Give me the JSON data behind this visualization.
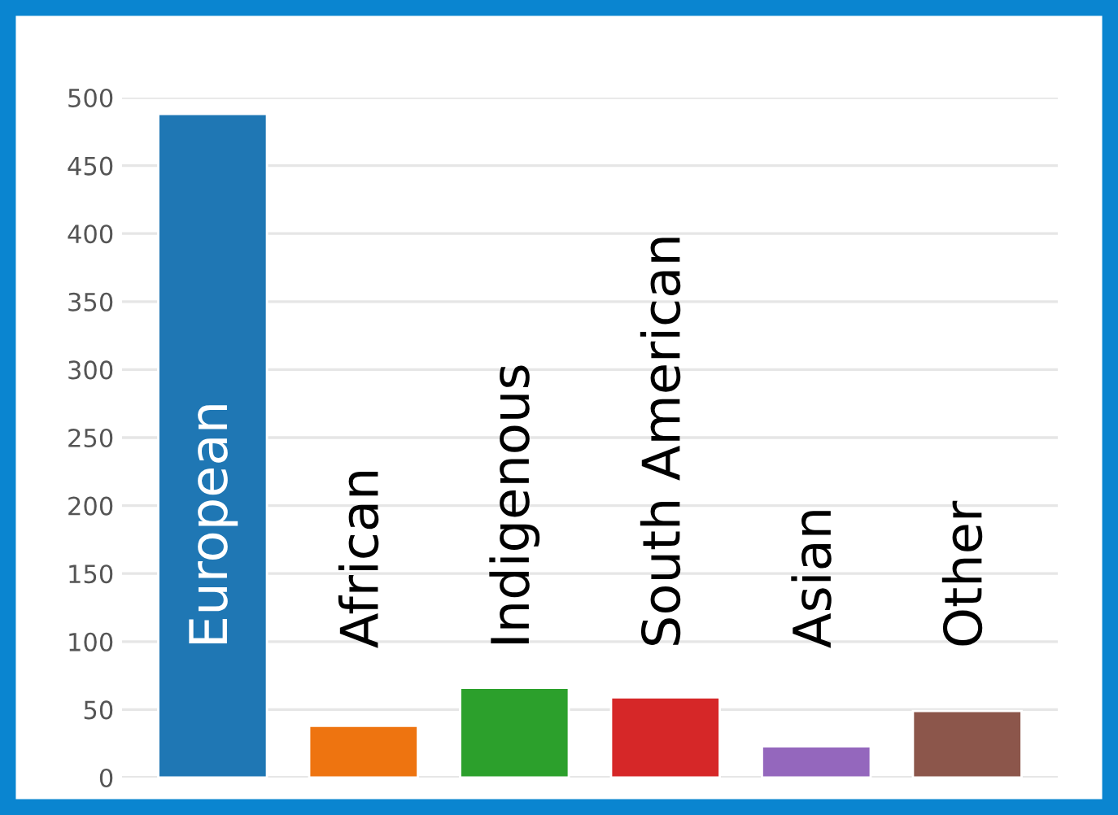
{
  "chart_data": {
    "type": "bar",
    "categories": [
      "European",
      "African",
      "Indigenous",
      "South American",
      "Asian",
      "Other"
    ],
    "values": [
      488,
      38,
      66,
      59,
      23,
      49
    ],
    "colors": [
      "#1f77b4",
      "#ee7410",
      "#2ca02c",
      "#d62728",
      "#9467bd",
      "#8c564b"
    ],
    "ylim": [
      0,
      500
    ],
    "yticks": [
      0,
      50,
      100,
      150,
      200,
      250,
      300,
      350,
      400,
      450,
      500
    ],
    "grid": "y"
  }
}
